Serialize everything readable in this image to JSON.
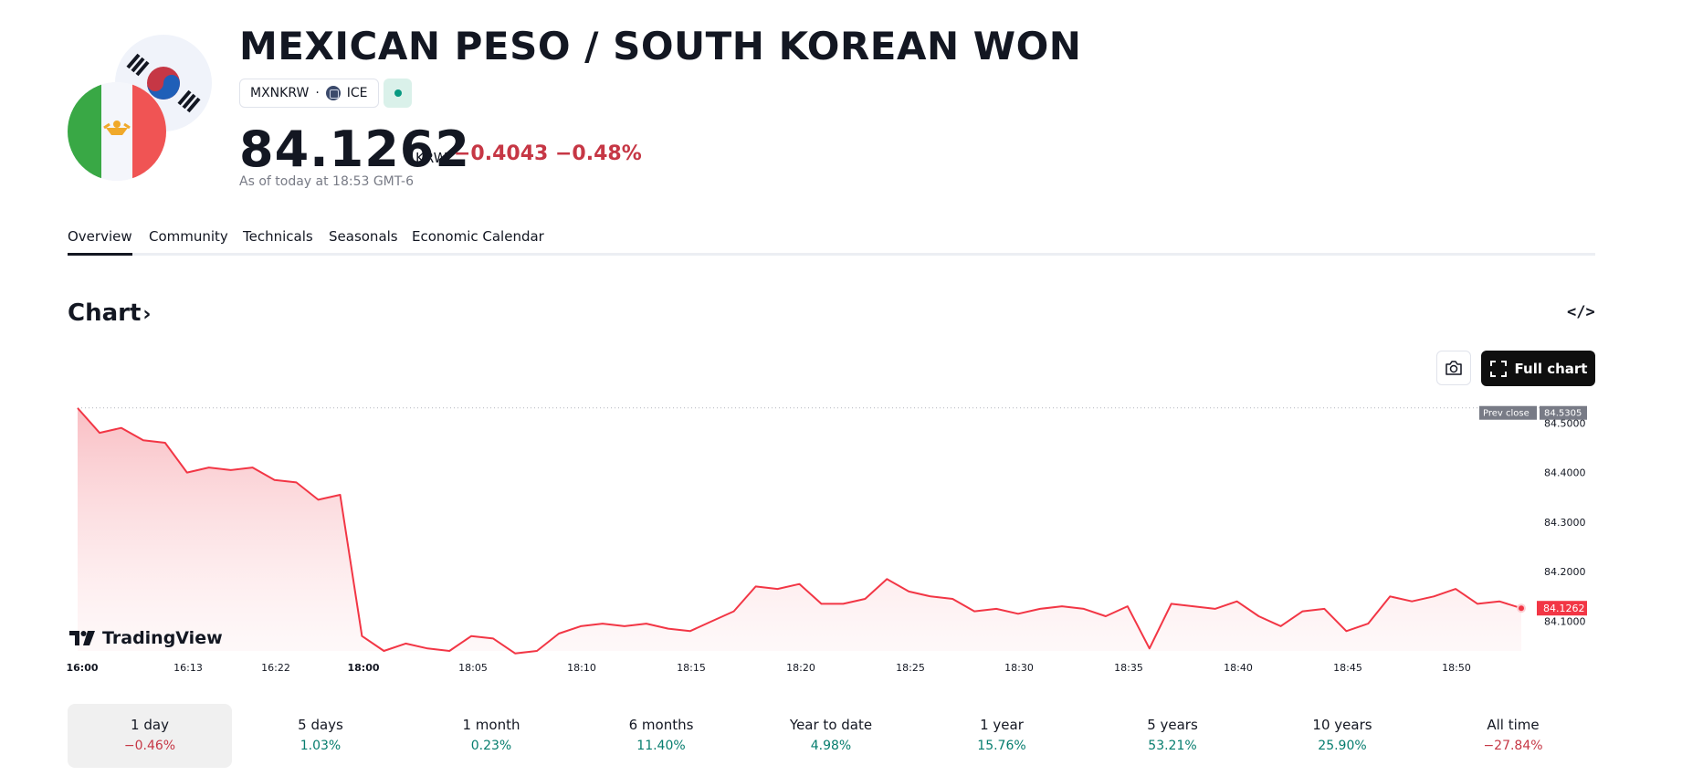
{
  "header": {
    "title": "MEXICAN PESO / SOUTH KOREAN WON",
    "ticker": "MXNKRW",
    "separator": "·",
    "exchange": "ICE",
    "price": "84.1262",
    "currency": "KRW",
    "change": "−0.4043 −0.48%",
    "as_of": "As of today at 18:53 GMT-6",
    "status_color": "#089981"
  },
  "tabs": [
    {
      "label": "Overview"
    },
    {
      "label": "Community"
    },
    {
      "label": "Technicals"
    },
    {
      "label": "Seasonals"
    },
    {
      "label": "Economic Calendar"
    }
  ],
  "chart_section": {
    "heading": "Chart",
    "chevron": "›",
    "embed_label": "</>",
    "full_chart_label": "Full chart"
  },
  "brand": {
    "tradingview": "TradingView"
  },
  "chart_data": {
    "type": "area",
    "color": "#f23645",
    "x_ticks": [
      "16:00",
      "16:13",
      "16:22",
      "18:00",
      "18:05",
      "18:10",
      "18:15",
      "18:20",
      "18:25",
      "18:30",
      "18:35",
      "18:40",
      "18:45",
      "18:50"
    ],
    "y_ticks": [
      "84.5000",
      "84.4000",
      "84.3000",
      "84.2000",
      "84.1000"
    ],
    "ylim": [
      84.04,
      84.53
    ],
    "prev_close_label": "Prev close",
    "prev_close_value": "84.5305",
    "prev_close": 84.5305,
    "last_label": "84.1262",
    "last": 84.1262,
    "values": [
      84.53,
      84.48,
      84.49,
      84.465,
      84.46,
      84.4,
      84.41,
      84.405,
      84.41,
      84.385,
      84.38,
      84.345,
      84.355,
      84.07,
      84.04,
      84.055,
      84.045,
      84.04,
      84.07,
      84.065,
      84.035,
      84.04,
      84.075,
      84.09,
      84.095,
      84.09,
      84.095,
      84.085,
      84.08,
      84.1,
      84.12,
      84.17,
      84.165,
      84.175,
      84.135,
      84.135,
      84.145,
      84.185,
      84.16,
      84.15,
      84.145,
      84.12,
      84.125,
      84.115,
      84.125,
      84.13,
      84.125,
      84.11,
      84.13,
      84.045,
      84.135,
      84.13,
      84.125,
      84.14,
      84.11,
      84.09,
      84.12,
      84.125,
      84.08,
      84.095,
      84.15,
      84.14,
      84.15,
      84.165,
      84.135,
      84.14,
      84.1262
    ]
  },
  "periods": [
    {
      "label": "1 day",
      "value": "−0.46%",
      "trend": "neg"
    },
    {
      "label": "5 days",
      "value": "1.03%",
      "trend": "pos"
    },
    {
      "label": "1 month",
      "value": "0.23%",
      "trend": "pos"
    },
    {
      "label": "6 months",
      "value": "11.40%",
      "trend": "pos"
    },
    {
      "label": "Year to date",
      "value": "4.98%",
      "trend": "pos"
    },
    {
      "label": "1 year",
      "value": "15.76%",
      "trend": "pos"
    },
    {
      "label": "5 years",
      "value": "53.21%",
      "trend": "pos"
    },
    {
      "label": "10 years",
      "value": "25.90%",
      "trend": "pos"
    },
    {
      "label": "All time",
      "value": "−27.84%",
      "trend": "neg"
    }
  ]
}
